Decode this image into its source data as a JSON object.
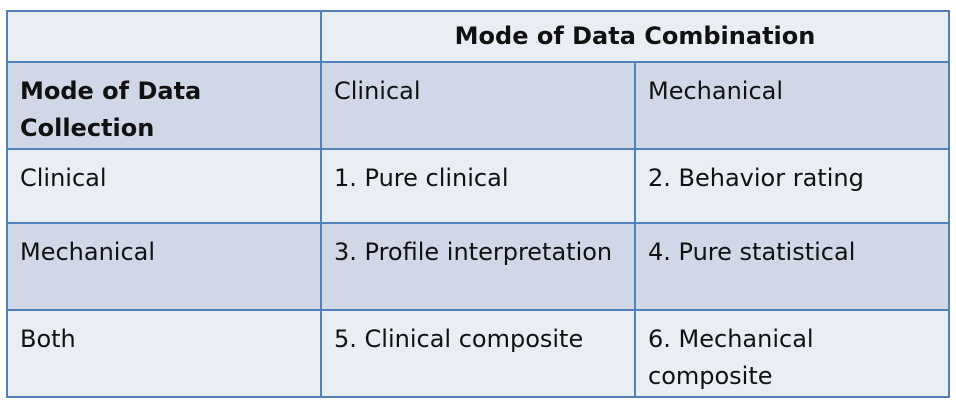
{
  "table": {
    "header": {
      "corner": "",
      "combination_title": "Mode of Data Combination"
    },
    "subheader": {
      "collection_label": "Mode of Data Collection",
      "col_clinical": "Clinical",
      "col_mechanical": "Mechanical"
    },
    "rows": [
      {
        "label": "Clinical",
        "clinical": "1. Pure clinical",
        "mechanical": "2. Behavior rating"
      },
      {
        "label": "Mechanical",
        "clinical": "3. Profile interpretation",
        "mechanical": "4. Pure statistical"
      },
      {
        "label": "Both",
        "clinical": "5. Clinical composite",
        "mechanical": "6. Mechanical composite"
      }
    ],
    "colors": {
      "border": "#4f81bd",
      "row_light": "#e9edf4",
      "row_dark": "#d0d8e8"
    }
  }
}
